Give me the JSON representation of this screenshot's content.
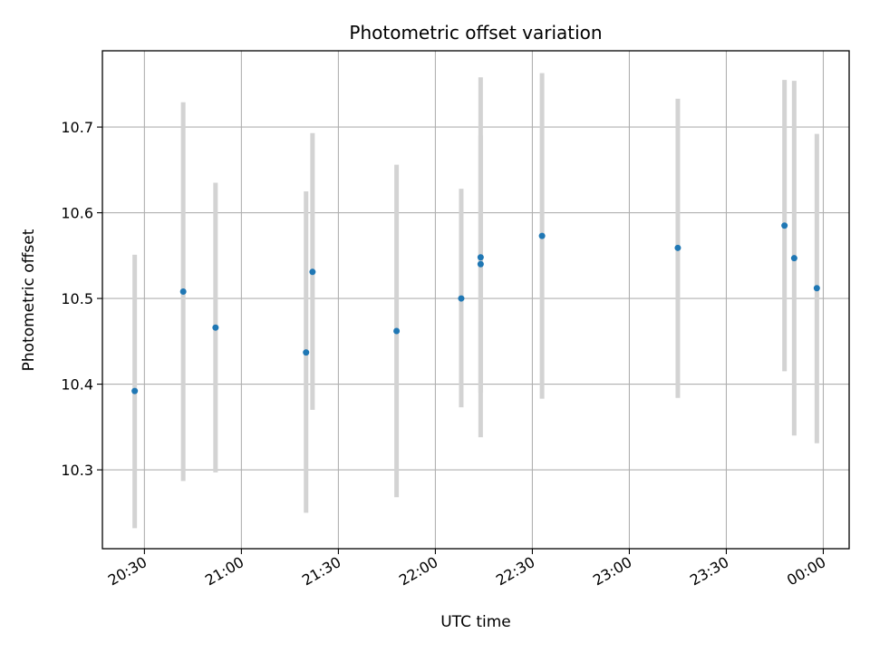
{
  "chart_data": {
    "type": "scatter",
    "title": "Photometric offset variation",
    "xlabel": "UTC time",
    "ylabel": "Photometric offset",
    "x_ticks": [
      "20:30",
      "21:00",
      "21:30",
      "22:00",
      "22:30",
      "23:00",
      "23:30",
      "00:00"
    ],
    "y_ticks": [
      "10.3",
      "10.4",
      "10.5",
      "10.6",
      "10.7"
    ],
    "xlim": [
      "20:17",
      "00:08"
    ],
    "ylim": [
      10.208,
      10.789
    ],
    "grid": true,
    "point_color": "#1f77b4",
    "errorbar_color": "#d3d3d3",
    "points": [
      {
        "x": "20:27",
        "y": 10.392,
        "ylow": 10.232,
        "yhigh": 10.551
      },
      {
        "x": "20:42",
        "y": 10.508,
        "ylow": 10.287,
        "yhigh": 10.729
      },
      {
        "x": "20:52",
        "y": 10.466,
        "ylow": 10.297,
        "yhigh": 10.635
      },
      {
        "x": "21:20",
        "y": 10.437,
        "ylow": 10.25,
        "yhigh": 10.625
      },
      {
        "x": "21:22",
        "y": 10.531,
        "ylow": 10.37,
        "yhigh": 10.693
      },
      {
        "x": "21:48",
        "y": 10.462,
        "ylow": 10.268,
        "yhigh": 10.656
      },
      {
        "x": "22:08",
        "y": 10.5,
        "ylow": 10.373,
        "yhigh": 10.628
      },
      {
        "x": "22:14",
        "y": 10.54,
        "ylow": 10.39,
        "yhigh": 10.69
      },
      {
        "x": "22:14",
        "y": 10.548,
        "ylow": 10.338,
        "yhigh": 10.758
      },
      {
        "x": "22:33",
        "y": 10.573,
        "ylow": 10.383,
        "yhigh": 10.763
      },
      {
        "x": "23:15",
        "y": 10.559,
        "ylow": 10.384,
        "yhigh": 10.733
      },
      {
        "x": "23:48",
        "y": 10.585,
        "ylow": 10.415,
        "yhigh": 10.755
      },
      {
        "x": "23:51",
        "y": 10.547,
        "ylow": 10.34,
        "yhigh": 10.754
      },
      {
        "x": "23:58",
        "y": 10.512,
        "ylow": 10.331,
        "yhigh": 10.692
      }
    ]
  }
}
